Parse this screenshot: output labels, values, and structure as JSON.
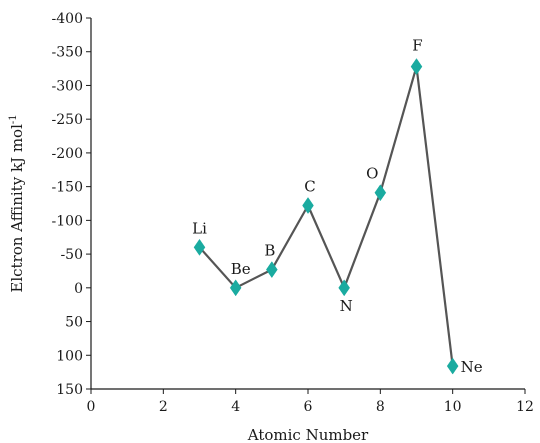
{
  "chart_data": {
    "type": "line",
    "title": "",
    "xlabel": "Atomic Number",
    "ylabel": "Elctron Affinity kJ mol",
    "ylabel_superscript": "-1",
    "xlim": [
      0,
      12
    ],
    "ylim": [
      150,
      -400
    ],
    "y_inverted": true,
    "x_ticks": [
      "0",
      "2",
      "4",
      "6",
      "8",
      "10",
      "12"
    ],
    "y_ticks": [
      "-400",
      "-350",
      "-300",
      "-250",
      "-200",
      "-150",
      "-100",
      "-50",
      "0",
      "50",
      "100",
      "150"
    ],
    "grid": false,
    "line_color": "#555555",
    "marker": "diamond",
    "marker_color": "#1aaba0",
    "points": [
      {
        "label": "Li",
        "x": 3,
        "y": -60
      },
      {
        "label": "Be",
        "x": 4,
        "y": 0
      },
      {
        "label": "B",
        "x": 5,
        "y": -27
      },
      {
        "label": "C",
        "x": 6,
        "y": -122
      },
      {
        "label": "N",
        "x": 7,
        "y": 0
      },
      {
        "label": "O",
        "x": 8,
        "y": -141
      },
      {
        "label": "F",
        "x": 9,
        "y": -328
      },
      {
        "label": "Ne",
        "x": 10,
        "y": 116
      }
    ]
  }
}
